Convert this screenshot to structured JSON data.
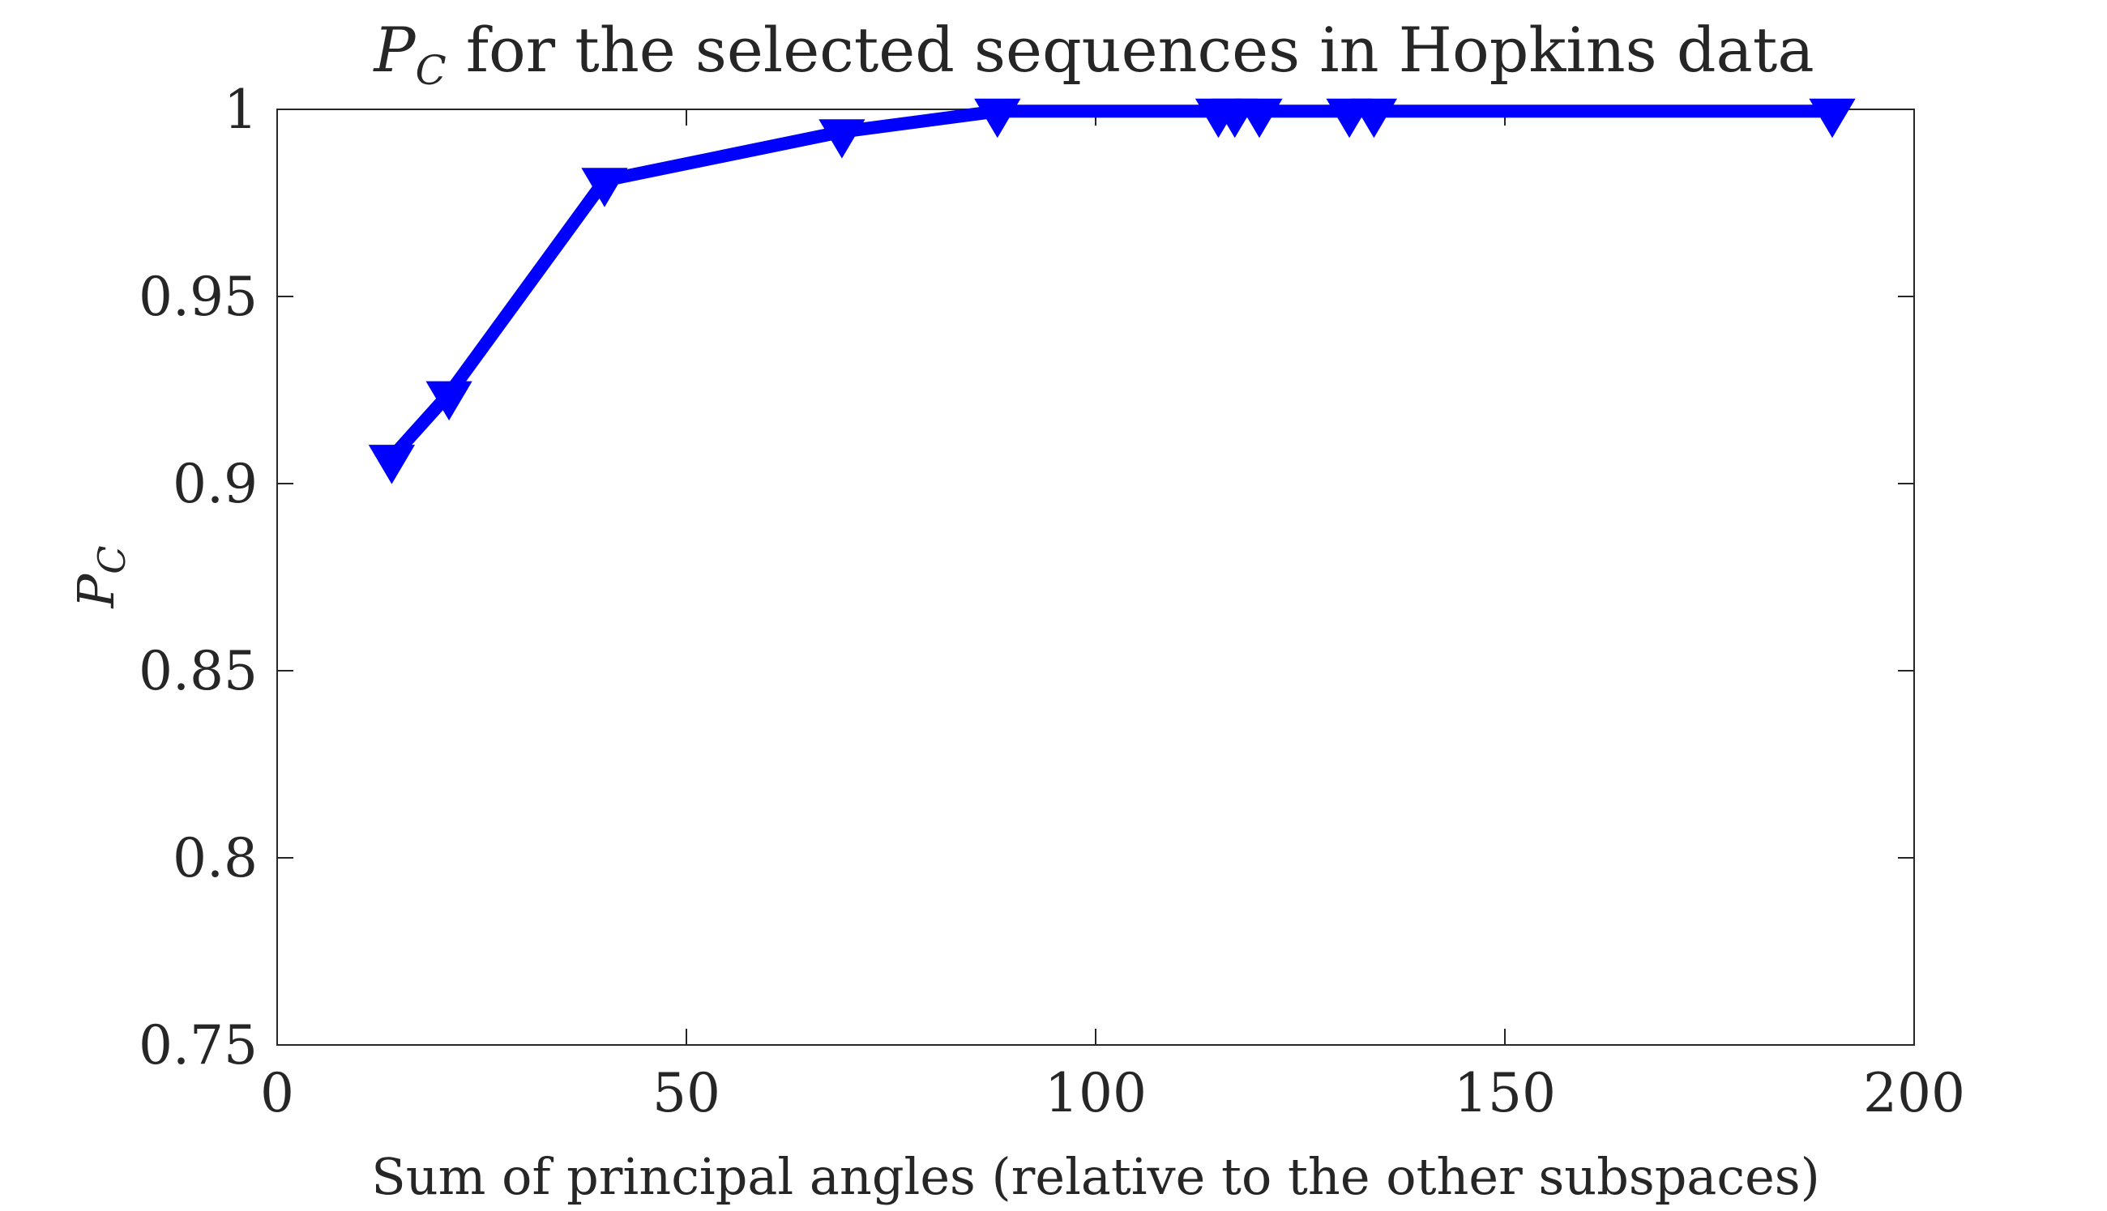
{
  "chart_data": {
    "type": "line",
    "title": {
      "prefix": "P",
      "subscript": "C",
      "rest": " for the selected sequences in Hopkins data"
    },
    "xlabel": "Sum of principal angles (relative to the other subspaces)",
    "ylabel": {
      "base": "P",
      "subscript": "C"
    },
    "xlim": [
      0,
      200
    ],
    "ylim": [
      0.75,
      1.0
    ],
    "xticks": [
      0,
      50,
      100,
      150,
      200
    ],
    "xtick_labels": [
      "0",
      "50",
      "100",
      "150",
      "200"
    ],
    "yticks": [
      0.75,
      0.8,
      0.85,
      0.9,
      0.95,
      1.0
    ],
    "ytick_labels": [
      "0.75",
      "0.8",
      "0.85",
      "0.9",
      "0.95",
      "1"
    ],
    "grid": false,
    "series": [
      {
        "color": "#0000ff",
        "marker": "triangle-down",
        "x": [
          14,
          21,
          40,
          69,
          88,
          115,
          117,
          120,
          131,
          134,
          190
        ],
        "y": [
          0.907,
          0.924,
          0.981,
          0.994,
          0.9995,
          0.9995,
          0.9995,
          0.9995,
          0.9995,
          0.9995,
          0.9995
        ]
      }
    ]
  }
}
